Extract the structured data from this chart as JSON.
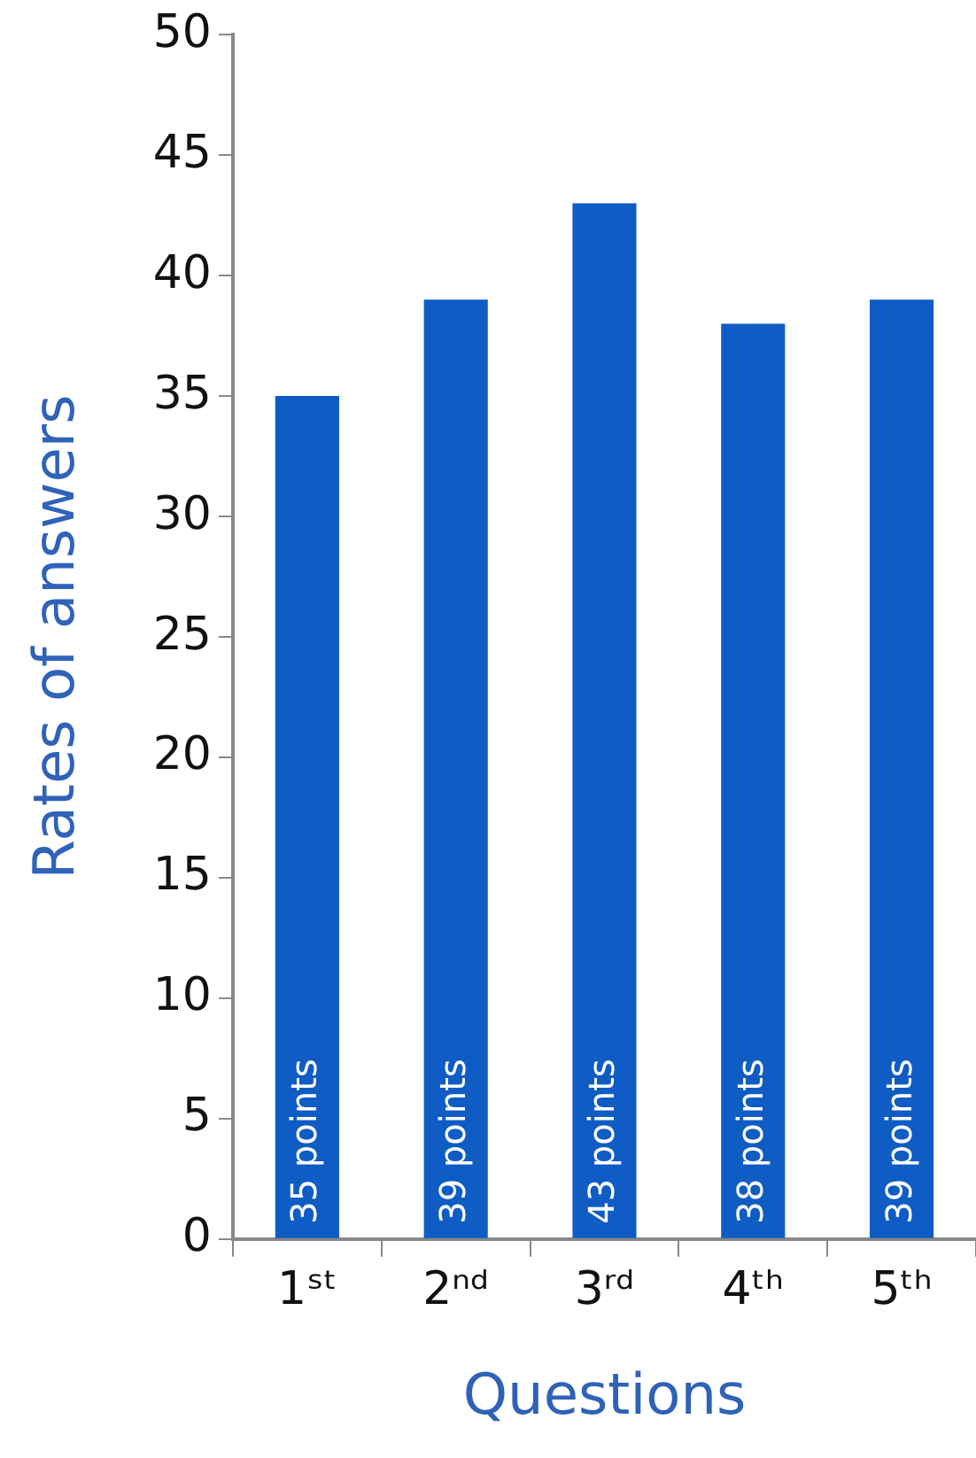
{
  "chart_data": {
    "type": "bar",
    "xlabel": "Questions",
    "ylabel": "Rates of answers",
    "categories": [
      "1ˢᵗ",
      "2ⁿᵈ",
      "3ʳᵈ",
      "4ᵗʰ",
      "5ᵗʰ"
    ],
    "values": [
      35,
      39,
      43,
      38,
      39
    ],
    "value_labels": [
      "35 points",
      "39 points",
      "43 points",
      "38 points",
      "39 points"
    ],
    "color": "#0f5cc4",
    "ylim": [
      0,
      50
    ],
    "yticks": [
      0,
      5,
      10,
      15,
      20,
      25,
      30,
      35,
      40,
      45,
      50
    ],
    "grid": false,
    "legend": false
  }
}
